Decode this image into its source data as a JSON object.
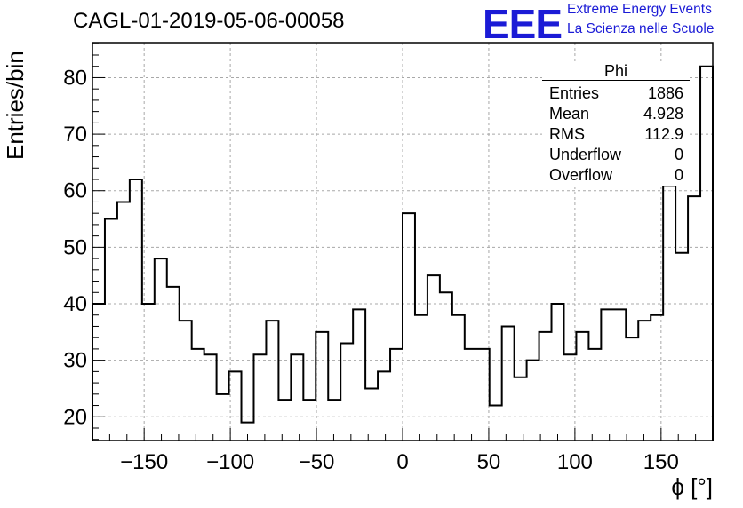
{
  "title": "CAGL-01-2019-05-06-00058",
  "logo": {
    "mark": "EEE",
    "line1": "Extreme Energy Events",
    "line2": "La Scienza nelle Scuole"
  },
  "stats": {
    "name": "Phi",
    "rows": [
      {
        "label": "Entries",
        "value": "1886"
      },
      {
        "label": "Mean",
        "value": "4.928"
      },
      {
        "label": "RMS",
        "value": "112.9"
      },
      {
        "label": "Underflow",
        "value": "0"
      },
      {
        "label": "Overflow",
        "value": "0"
      }
    ]
  },
  "chart_data": {
    "type": "bar",
    "title": "CAGL-01-2019-05-06-00058",
    "xlabel": "ϕ [°]",
    "ylabel": "Entries/bin",
    "xlim": [
      -180,
      180
    ],
    "ylim": [
      15.8,
      86.2
    ],
    "bin_width": 7.2,
    "grid": true,
    "xticks": [
      -150,
      -100,
      -50,
      0,
      50,
      100,
      150
    ],
    "xtick_labels": [
      "−150",
      "−100",
      "−50",
      "0",
      "50",
      "100",
      "150"
    ],
    "yticks": [
      20,
      30,
      40,
      50,
      60,
      70,
      80
    ],
    "ytick_labels": [
      "20",
      "30",
      "40",
      "50",
      "60",
      "70",
      "80"
    ],
    "values": [
      40,
      55,
      58,
      62,
      40,
      48,
      43,
      37,
      32,
      31,
      24,
      28,
      19,
      31,
      37,
      23,
      31,
      23,
      35,
      23,
      33,
      39,
      25,
      28,
      32,
      56,
      38,
      45,
      42,
      38,
      32,
      32,
      22,
      36,
      27,
      30,
      35,
      40,
      31,
      35,
      32,
      39,
      39,
      34,
      37,
      38,
      61,
      49,
      59,
      82
    ],
    "colors": {
      "line": "#000000",
      "grid": "#a8a8a8",
      "logo": "#1b1bd6"
    }
  }
}
